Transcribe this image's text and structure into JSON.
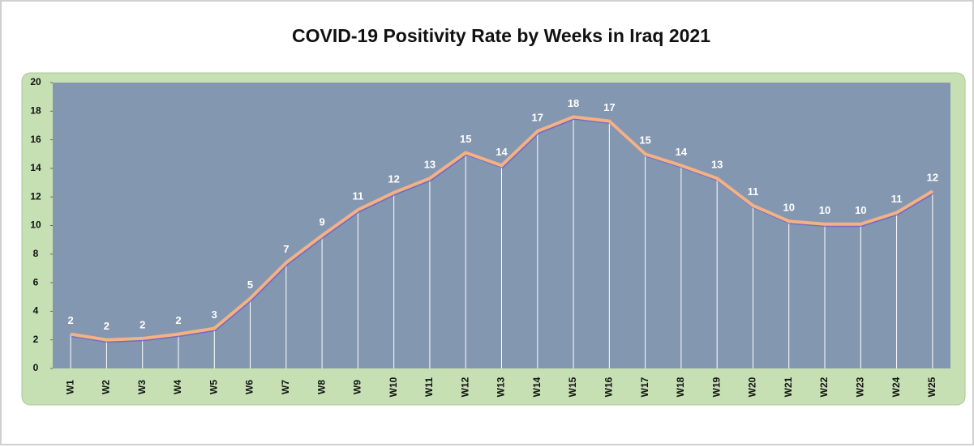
{
  "chart_data": {
    "type": "line",
    "title": "COVID-19 Positivity Rate by Weeks in Iraq 2021",
    "categories": [
      "W1",
      "W2",
      "W3",
      "W4",
      "W5",
      "W6",
      "W7",
      "W8",
      "W9",
      "W10",
      "W11",
      "W12",
      "W13",
      "W14",
      "W15",
      "W16",
      "W17",
      "W18",
      "W19",
      "W20",
      "W21",
      "W22",
      "W23",
      "W24",
      "W25"
    ],
    "values": [
      2.4,
      2.0,
      2.1,
      2.4,
      2.8,
      4.9,
      7.4,
      9.3,
      11.1,
      12.3,
      13.3,
      15.1,
      14.2,
      16.6,
      17.6,
      17.3,
      15.0,
      14.2,
      13.3,
      11.4,
      10.3,
      10.1,
      10.1,
      10.9,
      12.4
    ],
    "value_labels": [
      "2",
      "2",
      "2",
      "2",
      "3",
      "5",
      "7",
      "9",
      "11",
      "12",
      "13",
      "15",
      "14",
      "17",
      "18",
      "17",
      "15",
      "14",
      "13",
      "11",
      "10",
      "10",
      "10",
      "11",
      "12"
    ],
    "color": "#f4b183",
    "ylim": [
      0,
      20
    ],
    "yticks": [
      0,
      2,
      4,
      6,
      8,
      10,
      12,
      14,
      16,
      18,
      20
    ]
  }
}
